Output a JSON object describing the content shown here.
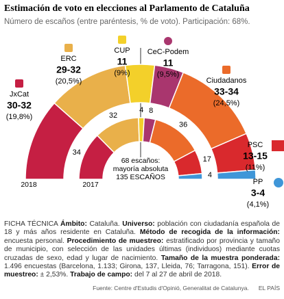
{
  "chart_data": {
    "type": "hemicycle",
    "title": "Estimación de voto en elecciones al Parlamento de Cataluña",
    "subtitle": "Número de escaños (entre paréntesis, % de voto). Participación: 68%.",
    "rings": [
      "2018",
      "2017"
    ],
    "majority_label": "68 escaños:",
    "majority_text": "mayoría absoluta",
    "total_label": "135 ESCAÑOS",
    "parties": [
      "JxCat",
      "ERC",
      "CUP",
      "CeC-Podem",
      "Ciudadanos",
      "PSC",
      "PP"
    ],
    "colors": [
      "#c51f43",
      "#e9b04a",
      "#f3d02a",
      "#a9366e",
      "#eb6b2a",
      "#d9292d",
      "#3f96d8"
    ],
    "seats_2018_low": [
      30,
      29,
      11,
      11,
      33,
      13,
      3
    ],
    "seats_2018_high": [
      32,
      32,
      11,
      11,
      34,
      15,
      4
    ],
    "seats_2018_labels": [
      "30-32",
      "29-32",
      "11",
      "11",
      "33-34",
      "13-15",
      "3-4"
    ],
    "vote_2018": [
      19.8,
      20.5,
      9,
      9.5,
      24.5,
      11,
      4.1
    ],
    "vote_2018_labels": [
      "(19,8%)",
      "(20,5%)",
      "(9%)",
      "(9,5%)",
      "(24,5%)",
      "(11%)",
      "(4,1%)"
    ],
    "seats_2017": [
      34,
      32,
      4,
      8,
      36,
      17,
      4
    ]
  },
  "notes": {
    "heading": "FICHA TÉCNICA",
    "items": [
      {
        "label": "Ámbito:",
        "text": "Cataluña."
      },
      {
        "label": "Universo:",
        "text": "población con ciudadanía española de 18 y más años residente en Cataluña."
      },
      {
        "label": "Método de recogida de la información:",
        "text": "encuesta personal."
      },
      {
        "label": "Procedimiento de muestreo:",
        "text": "estratificado por provincia y tamaño de municipio, con selección de las unidades últimas (individuos) mediante cuotas cruzadas de sexo, edad y lugar de nacimiento."
      },
      {
        "label": "Tamaño de la muestra ponderada:",
        "text": "1.496 encuestas (Barcelona, 1.133; Girona, 137, Lleida, 76; Tarragona, 151)."
      },
      {
        "label": "Error de muestreo:",
        "text": "± 2,53%."
      },
      {
        "label": "Trabajo de campo:",
        "text": "del 7 al 27 de abril de 2018."
      }
    ],
    "source": "Fuente: Centre d'Estudis d'Opinió, Generalitat de Catalunya.",
    "brand": "EL PAÍS"
  }
}
